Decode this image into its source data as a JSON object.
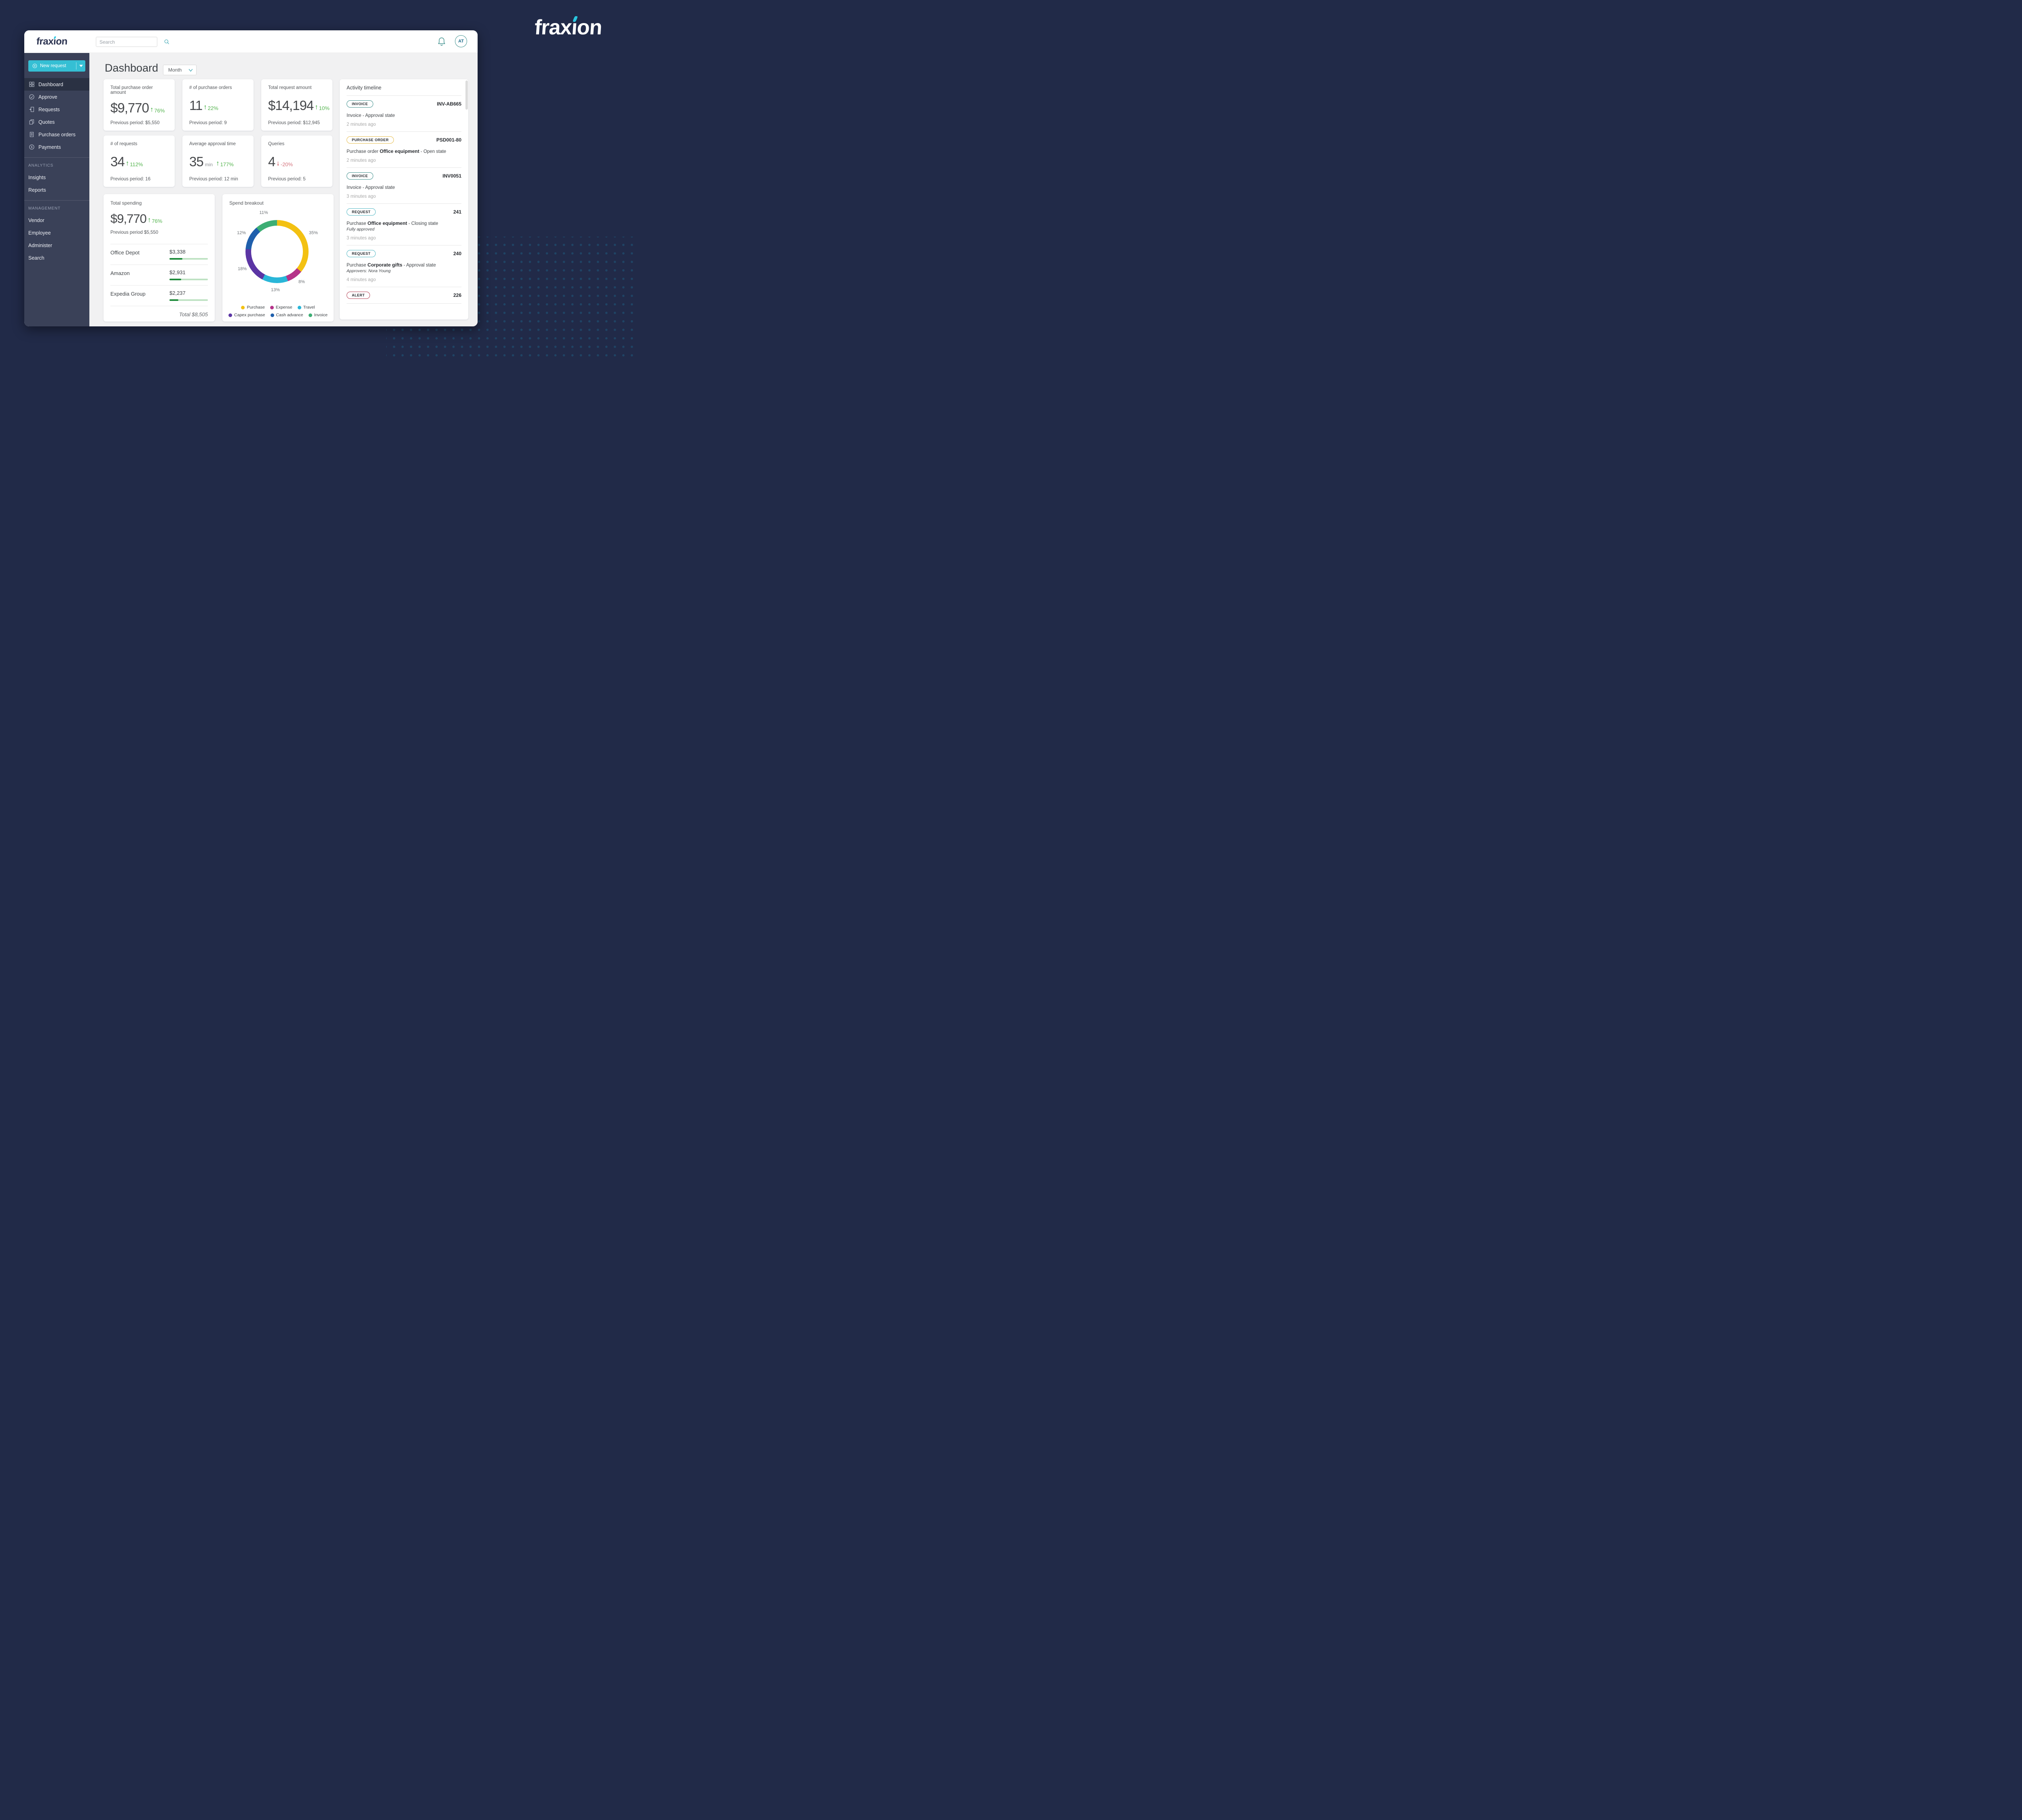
{
  "colors": {
    "accent_teal": "#35BFD4",
    "navy_background": "#212A48",
    "positive_green": "#54B44E",
    "positive_arrow": "#1F9C1F",
    "negative_red": "#D4737D",
    "negative_arrow": "#C2232E",
    "spend_bar_fill": "#1F8B3B",
    "spend_bar_track": "#BFE2C3"
  },
  "brand": {
    "name": "fraxion",
    "logo_pre": "frax",
    "logo_i": "ı",
    "logo_post": "on"
  },
  "header": {
    "search_placeholder": "Search",
    "avatar_initials": "AT"
  },
  "sidebar": {
    "new_request_label": "New request",
    "items": [
      {
        "label": "Dashboard",
        "icon": "dashboard-grid-icon",
        "active": true
      },
      {
        "label": "Approve",
        "icon": "check-circle-icon",
        "active": false
      },
      {
        "label": "Requests",
        "icon": "document-arrow-icon",
        "active": false
      },
      {
        "label": "Quotes",
        "icon": "documents-icon",
        "active": false
      },
      {
        "label": "Purchase orders",
        "icon": "document-lines-icon",
        "active": false
      },
      {
        "label": "Payments",
        "icon": "dollar-circle-icon",
        "active": false
      }
    ],
    "sections": [
      {
        "title": "ANALYTICS",
        "items": [
          {
            "label": "Insights"
          },
          {
            "label": "Reports"
          }
        ]
      },
      {
        "title": "MANAGEMENT",
        "items": [
          {
            "label": "Vendor"
          },
          {
            "label": "Employee"
          },
          {
            "label": "Administer"
          },
          {
            "label": "Search"
          }
        ]
      }
    ]
  },
  "main": {
    "title": "Dashboard",
    "period_selector": "Month",
    "kpis": [
      {
        "title": "Total purchase order amount",
        "value": "$9,770",
        "arrow": "↑",
        "delta": "76%",
        "previous": "Previous period: $5,550",
        "delta_color": "#54B44E",
        "arrow_color": "#1F9C1F"
      },
      {
        "title": "# of purchase orders",
        "value": "11",
        "arrow": "↑",
        "delta": "22%",
        "previous": "Previous period: 9",
        "delta_color": "#54B44E",
        "arrow_color": "#1F9C1F"
      },
      {
        "title": "Total request amount",
        "value": "$14,194",
        "arrow": "↑",
        "delta": "10%",
        "previous": "Previous period: $12,945",
        "delta_color": "#54B44E",
        "arrow_color": "#1F9C1F"
      },
      {
        "title": "# of requests",
        "value": "34",
        "arrow": "↑",
        "delta": "112%",
        "previous": "Previous period: 16",
        "delta_color": "#54B44E",
        "arrow_color": "#1F9C1F"
      },
      {
        "title": "Average approval time",
        "value": "35",
        "unit": "min",
        "arrow": "↑",
        "delta": "177%",
        "previous": "Previous period: 12 min",
        "delta_color": "#54B44E",
        "arrow_color": "#1F9C1F"
      },
      {
        "title": "Queries",
        "value": "4",
        "arrow": "↓",
        "delta": "-20%",
        "previous": "Previous period: 5",
        "delta_color": "#D4737D",
        "arrow_color": "#C2232E"
      }
    ],
    "total_spending": {
      "title": "Total spending",
      "value": "$9,770",
      "arrow": "↑",
      "delta": "76%",
      "delta_color": "#54B44E",
      "arrow_color": "#1F9C1F",
      "previous": "Previous period $5,550",
      "total_label": "Total $8,505"
    },
    "spend_breakout_title": "Spend breakout",
    "activity": {
      "title": "Activity timeline",
      "items": [
        {
          "badge": "INVOICE",
          "badge_color": "#3E8F8C",
          "ref": "INV-AB665",
          "desc_pre": "Invoice - Approval state",
          "time": "2 minutes ago"
        },
        {
          "badge": "PURCHASE ORDER",
          "badge_color": "#E5BC4B",
          "ref": "PSD001-80",
          "desc_pre": "Purchase order ",
          "desc_bold": "Office equipment",
          "desc_post": " - Open state",
          "time": "2 minutes ago"
        },
        {
          "badge": "INVOICE",
          "badge_color": "#3E8F8C",
          "ref": "INV0051",
          "desc_pre": "Invoice - Approval state",
          "time": "3 minutes ago"
        },
        {
          "badge": "REQUEST",
          "badge_color": "#52B7C4",
          "ref": "241",
          "desc_pre": "Purchase ",
          "desc_bold": "Office equipment",
          "desc_post": " - Closing state",
          "note": "Fully approved",
          "time": "3 minutes ago"
        },
        {
          "badge": "REQUEST",
          "badge_color": "#52B7C4",
          "ref": "240",
          "desc_pre": "Purchase ",
          "desc_bold": "Corporate gifts",
          "desc_post": " - Approval state",
          "note": "Approvers: Nora Young",
          "time": "4 minutes ago"
        },
        {
          "badge": "ALERT",
          "badge_color": "#B44153",
          "ref": "226"
        }
      ]
    }
  },
  "chart_data": [
    {
      "type": "pie",
      "subtype": "donut",
      "title": "Spend breakout",
      "labels": [
        "Purchase",
        "Expense",
        "Travel",
        "Capex purchase",
        "Cash advance",
        "Invoice"
      ],
      "values": [
        35,
        8,
        13,
        18,
        12,
        11
      ],
      "percent_labels": [
        "35%",
        "8%",
        "13%",
        "18%",
        "12%",
        "11%"
      ],
      "colors": [
        "#F3C112",
        "#B5338A",
        "#29B6D8",
        "#5B35A4",
        "#1F5FAC",
        "#3DAE74"
      ],
      "start_angle_deg": 0,
      "direction": "clockwise",
      "legend_position": "bottom"
    },
    {
      "type": "bar",
      "title": "Total spending by vendor",
      "orientation": "horizontal",
      "categories": [
        "Office Depot",
        "Amazon",
        "Expedia Group"
      ],
      "values": [
        3338,
        2931,
        2237
      ],
      "value_labels": [
        "$3,338",
        "$2,931",
        "$2,237"
      ],
      "bar_fill_pct": [
        34,
        30,
        23
      ],
      "total": 8505,
      "total_label": "Total $8,505"
    }
  ]
}
